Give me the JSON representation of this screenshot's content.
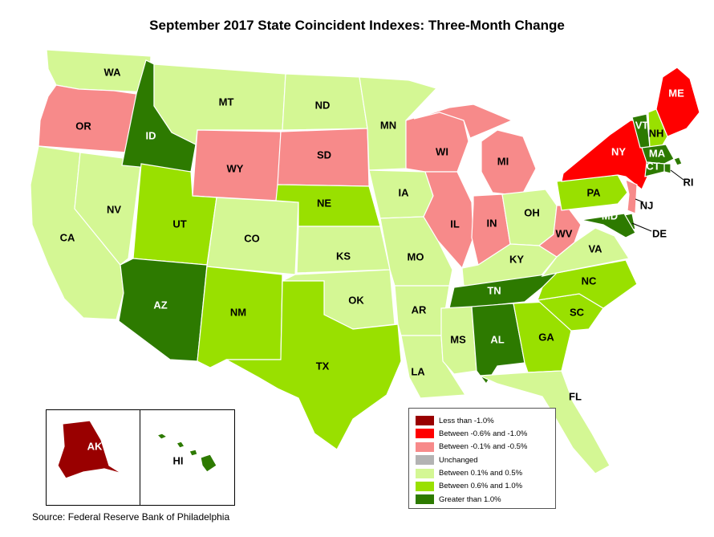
{
  "title": "September 2017 State Coincident Indexes: Three-Month Change",
  "source": "Source: Federal Reserve Bank of Philadelphia",
  "colors": {
    "lt_neg1": "#990000",
    "neg06_neg1": "#ff0000",
    "neg01_neg05": "#f78a8a",
    "unchanged": "#b3b3b3",
    "p01_p05": "#d4f794",
    "p06_p1": "#99e000",
    "gt_p1": "#2d7a00"
  },
  "legend": [
    {
      "label": "Less than -1.0%",
      "color": "#990000"
    },
    {
      "label": "Between -0.6% and -1.0%",
      "color": "#ff0000"
    },
    {
      "label": "Between -0.1% and -0.5%",
      "color": "#f78a8a"
    },
    {
      "label": "Unchanged",
      "color": "#b3b3b3"
    },
    {
      "label": "Between 0.1% and 0.5%",
      "color": "#d4f794"
    },
    {
      "label": "Between 0.6% and 1.0%",
      "color": "#99e000"
    },
    {
      "label": "Greater than 1.0%",
      "color": "#2d7a00"
    }
  ],
  "states": [
    {
      "code": "WA",
      "category": "p01_p05"
    },
    {
      "code": "OR",
      "category": "neg01_neg05"
    },
    {
      "code": "CA",
      "category": "p01_p05"
    },
    {
      "code": "NV",
      "category": "p01_p05"
    },
    {
      "code": "ID",
      "category": "gt_p1"
    },
    {
      "code": "MT",
      "category": "p01_p05"
    },
    {
      "code": "WY",
      "category": "neg01_neg05"
    },
    {
      "code": "UT",
      "category": "p06_p1"
    },
    {
      "code": "AZ",
      "category": "gt_p1"
    },
    {
      "code": "CO",
      "category": "p01_p05"
    },
    {
      "code": "NM",
      "category": "p06_p1"
    },
    {
      "code": "ND",
      "category": "p01_p05"
    },
    {
      "code": "SD",
      "category": "neg01_neg05"
    },
    {
      "code": "NE",
      "category": "p06_p1"
    },
    {
      "code": "KS",
      "category": "p01_p05"
    },
    {
      "code": "OK",
      "category": "p01_p05"
    },
    {
      "code": "TX",
      "category": "p06_p1"
    },
    {
      "code": "MN",
      "category": "p01_p05"
    },
    {
      "code": "IA",
      "category": "p01_p05"
    },
    {
      "code": "MO",
      "category": "p01_p05"
    },
    {
      "code": "AR",
      "category": "p01_p05"
    },
    {
      "code": "LA",
      "category": "p01_p05"
    },
    {
      "code": "WI",
      "category": "neg01_neg05"
    },
    {
      "code": "IL",
      "category": "neg01_neg05"
    },
    {
      "code": "MI",
      "category": "neg01_neg05"
    },
    {
      "code": "IN",
      "category": "neg01_neg05"
    },
    {
      "code": "OH",
      "category": "p01_p05"
    },
    {
      "code": "KY",
      "category": "p01_p05"
    },
    {
      "code": "TN",
      "category": "gt_p1"
    },
    {
      "code": "MS",
      "category": "p01_p05"
    },
    {
      "code": "AL",
      "category": "gt_p1"
    },
    {
      "code": "GA",
      "category": "p06_p1"
    },
    {
      "code": "FL",
      "category": "p01_p05"
    },
    {
      "code": "SC",
      "category": "p06_p1"
    },
    {
      "code": "NC",
      "category": "p06_p1"
    },
    {
      "code": "VA",
      "category": "p01_p05"
    },
    {
      "code": "WV",
      "category": "neg01_neg05"
    },
    {
      "code": "PA",
      "category": "p06_p1"
    },
    {
      "code": "NY",
      "category": "neg06_neg1"
    },
    {
      "code": "VT",
      "category": "gt_p1"
    },
    {
      "code": "NH",
      "category": "p06_p1"
    },
    {
      "code": "ME",
      "category": "neg06_neg1"
    },
    {
      "code": "MA",
      "category": "gt_p1"
    },
    {
      "code": "RI",
      "category": "gt_p1"
    },
    {
      "code": "CT",
      "category": "gt_p1"
    },
    {
      "code": "NJ",
      "category": "neg01_neg05"
    },
    {
      "code": "DE",
      "category": "gt_p1"
    },
    {
      "code": "MD",
      "category": "gt_p1"
    },
    {
      "code": "AK",
      "category": "lt_neg1"
    },
    {
      "code": "HI",
      "category": "gt_p1"
    }
  ]
}
